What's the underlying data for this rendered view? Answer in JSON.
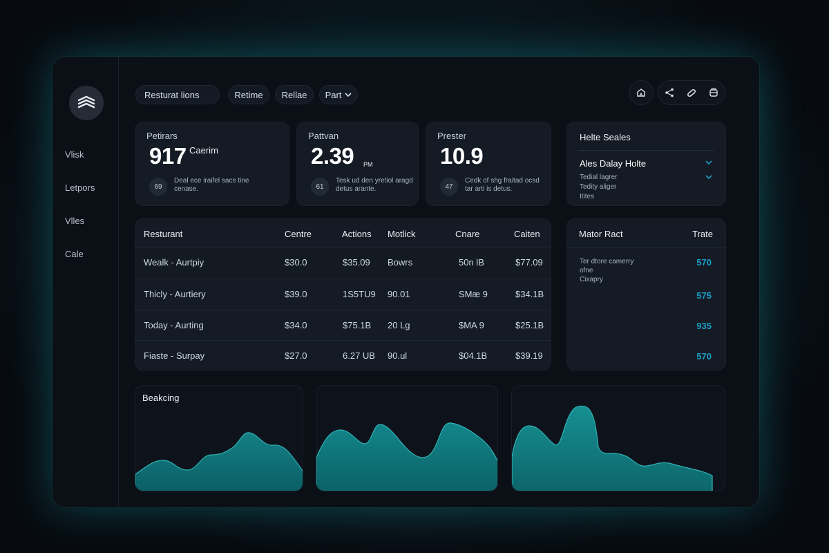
{
  "sidebar": {
    "items": [
      {
        "label": "Vlisk"
      },
      {
        "label": "Letpors"
      },
      {
        "label": "Vlles"
      },
      {
        "label": "Cale"
      }
    ]
  },
  "topbar": {
    "search_label": "Resturat lions",
    "btn1": "Retime",
    "btn2": "Rellae",
    "dropdown": "Part"
  },
  "kpis": [
    {
      "label": "Petirars",
      "value": "917",
      "unit": "Caerim",
      "badge": "69",
      "desc": "Deal ece iraifel sacs tine cenase."
    },
    {
      "label": "Pattvan",
      "value": "2.39",
      "unit": "PM",
      "badge": "61",
      "desc": "Tesk ud den yretiol aragd detus arante."
    },
    {
      "label": "Prester",
      "value": "10.9",
      "unit": "",
      "badge": "47",
      "desc": "Cedk of shg fraitad ocsd tar arti is detus."
    }
  ],
  "sales_panel": {
    "title": "Helte Seales",
    "item": "Ales Dalay Holte",
    "lines": [
      "Tedial lagrer",
      "Tedity aliger",
      "Itites"
    ]
  },
  "table": {
    "headers": [
      "Resturant",
      "Centre",
      "Actions",
      "Motlick",
      "Cnare",
      "Caiten"
    ],
    "rows": [
      [
        "Wealk - Aurtpiy",
        "$30.0",
        "$35.09",
        "Bowrs",
        "50n lB",
        "$77.09"
      ],
      [
        "Thicly - Aurtiery",
        "$39.0",
        "1S5TU9",
        "90.01",
        "SMæ 9",
        "$34.1B"
      ],
      [
        "Today - Aurting",
        "$34.0",
        "$75.1B",
        "20 Lg",
        "$MA 9",
        "$25.1B"
      ],
      [
        "Fiaste - Surpay",
        "$27.0",
        "6.27 UB",
        "90.ul",
        "$04.1B",
        "$39.19"
      ]
    ]
  },
  "metric_panel": {
    "title": "Mator Ract",
    "col": "Trate",
    "note": [
      "Ter dtore camerry",
      "ofne",
      "Cixapry"
    ],
    "values": [
      "570",
      "575",
      "935",
      "570"
    ]
  },
  "charts": {
    "title1": "Beakcing"
  },
  "colors": {
    "accent": "#1a9fc7",
    "area_fill": "#0c7479"
  }
}
